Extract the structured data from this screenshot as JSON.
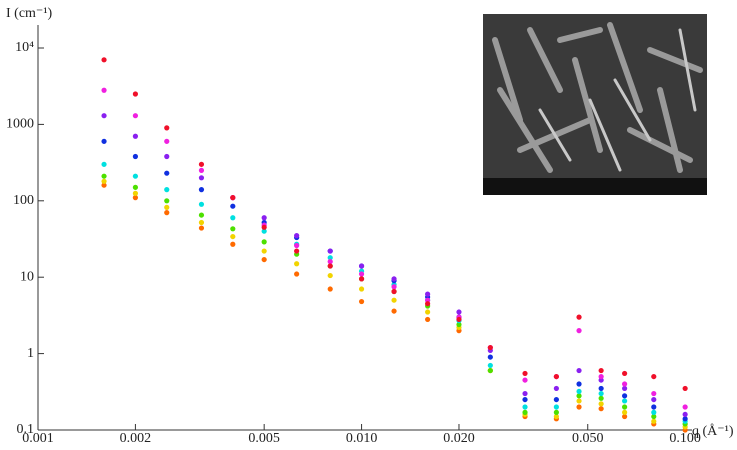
{
  "chart_data": {
    "type": "scatter",
    "x_label": "q (Å⁻¹)",
    "y_label": "I (cm⁻¹)",
    "xscale": "log",
    "yscale": "log",
    "xlim": [
      0.001,
      0.105
    ],
    "ylim": [
      0.1,
      20000
    ],
    "xticks": [
      0.001,
      0.002,
      0.005,
      {
        "value": 0.01,
        "label": "0.010"
      },
      {
        "value": 0.02,
        "label": "0.020"
      },
      {
        "value": 0.05,
        "label": "0.050"
      },
      {
        "value": 0.1,
        "label": "0.100"
      }
    ],
    "yticks": [
      0.1,
      1,
      10,
      100,
      1000,
      {
        "value": 10000,
        "label": "10⁴"
      }
    ],
    "x": [
      0.0016,
      0.002,
      0.0025,
      0.0032,
      0.004,
      0.005,
      0.0063,
      0.008,
      0.01,
      0.0126,
      0.016,
      0.02,
      0.025,
      0.032,
      0.04,
      0.047,
      0.055,
      0.065,
      0.08,
      0.1
    ],
    "series": [
      {
        "color": "#ff6a00",
        "values": [
          160,
          110,
          70,
          44,
          27,
          17,
          11,
          7,
          4.8,
          3.6,
          2.8,
          2,
          0.6,
          0.15,
          0.14,
          0.2,
          0.19,
          0.15,
          0.12,
          0.1
        ]
      },
      {
        "color": "#f2d400",
        "values": [
          180,
          125,
          82,
          52,
          34,
          22,
          15,
          10.5,
          7,
          5,
          3.5,
          2.2,
          0.6,
          0.16,
          0.15,
          0.24,
          0.22,
          0.17,
          0.13,
          0.11
        ]
      },
      {
        "color": "#4de000",
        "values": [
          210,
          150,
          100,
          65,
          43,
          29,
          20,
          14,
          9.5,
          6.5,
          4.2,
          2.4,
          0.6,
          0.17,
          0.17,
          0.28,
          0.26,
          0.2,
          0.15,
          0.12
        ]
      },
      {
        "color": "#00e0e0",
        "values": [
          300,
          210,
          140,
          90,
          60,
          40,
          27,
          18,
          12,
          8,
          5,
          2.7,
          0.7,
          0.2,
          0.2,
          0.32,
          0.3,
          0.24,
          0.17,
          0.13
        ]
      },
      {
        "color": "#1030e0",
        "values": [
          600,
          380,
          230,
          140,
          85,
          52,
          33,
          22,
          14,
          9,
          5.5,
          3,
          0.9,
          0.25,
          0.25,
          0.4,
          0.35,
          0.28,
          0.2,
          0.14
        ]
      },
      {
        "color": "#8a20f0",
        "values": [
          1300,
          700,
          380,
          200,
          110,
          60,
          35,
          22,
          14,
          9.5,
          6,
          3.5,
          1.1,
          0.3,
          0.35,
          0.6,
          0.45,
          0.35,
          0.25,
          0.16
        ]
      },
      {
        "color": "#f020e0",
        "values": [
          2800,
          1300,
          600,
          250,
          110,
          48,
          26,
          16,
          11,
          7.5,
          5,
          3,
          1.2,
          0.45,
          0.5,
          2.0,
          0.5,
          0.4,
          0.3,
          0.2
        ]
      },
      {
        "color": "#f0102a",
        "values": [
          7000,
          2500,
          900,
          300,
          110,
          45,
          22,
          14,
          9.5,
          6.5,
          4.5,
          2.8,
          1.2,
          0.55,
          0.5,
          3.0,
          0.6,
          0.55,
          0.5,
          0.35
        ]
      }
    ]
  }
}
